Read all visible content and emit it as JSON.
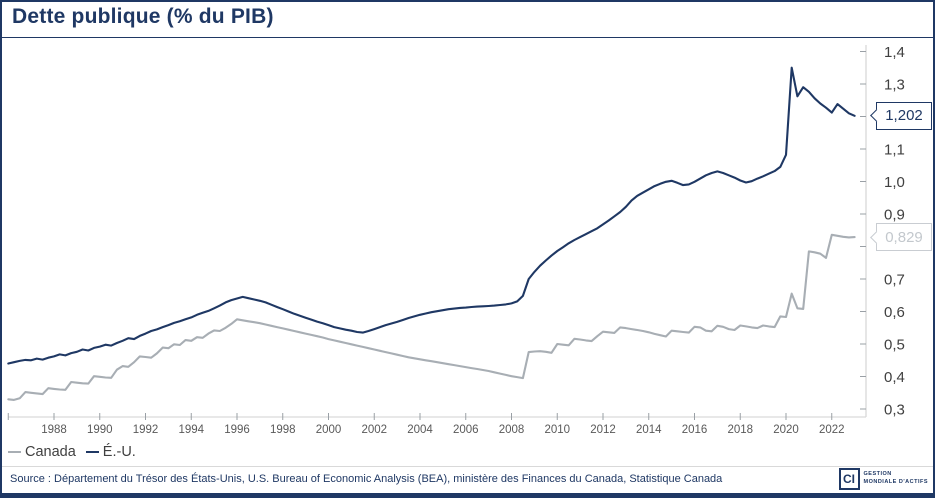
{
  "title": "Dette publique (% du PIB)",
  "source": "Source : Département du Trésor des États-Unis, U.S. Bureau of Economic Analysis (BEA), ministère des Finances du Canada, Statistique Canada",
  "logo": {
    "mark": "CI",
    "line1": "GESTION",
    "line2": "MONDIALE D'ACTIFS"
  },
  "legend": [
    {
      "label": "Canada",
      "color": "#A8AEB4"
    },
    {
      "label": "É.-U.",
      "color": "#1F3864"
    }
  ],
  "colors": {
    "navy": "#1F3864",
    "canada_gray": "#A8AEB4",
    "axis_line": "#D9D9D9",
    "tick": "#9AA0A6",
    "ytick_label": "#404040",
    "xtick_label": "#595959",
    "gray_callout_border": "#C9CDD2",
    "gray_callout_text": "#C3C8CD"
  },
  "chart_data": {
    "type": "line",
    "title": "Dette publique (% du PIB)",
    "xlabel": "",
    "ylabel": "",
    "x_start_year": 1986,
    "x_step_years": 0.25,
    "xlim": [
      1986,
      2023.5
    ],
    "y_axis": {
      "min": 0.3,
      "max": 1.4,
      "side": "right",
      "ticks": [
        {
          "value": 1.4,
          "label": "1,4"
        },
        {
          "value": 1.3,
          "label": "1,3"
        },
        {
          "value": 1.2,
          "label": ""
        },
        {
          "value": 1.1,
          "label": "1,1"
        },
        {
          "value": 1.0,
          "label": "1,0"
        },
        {
          "value": 0.9,
          "label": "0,9"
        },
        {
          "value": 0.8,
          "label": ""
        },
        {
          "value": 0.7,
          "label": "0,7"
        },
        {
          "value": 0.6,
          "label": "0,6"
        },
        {
          "value": 0.5,
          "label": "0,5"
        },
        {
          "value": 0.4,
          "label": "0,4"
        },
        {
          "value": 0.3,
          "label": "0,3"
        }
      ]
    },
    "x_axis": {
      "ticks": [
        {
          "year": 1986,
          "label": ""
        },
        {
          "year": 1988,
          "label": "1988"
        },
        {
          "year": 1990,
          "label": "1990"
        },
        {
          "year": 1992,
          "label": "1992"
        },
        {
          "year": 1994,
          "label": "1994"
        },
        {
          "year": 1996,
          "label": "1996"
        },
        {
          "year": 1998,
          "label": "1998"
        },
        {
          "year": 2000,
          "label": "2000"
        },
        {
          "year": 2002,
          "label": "2002"
        },
        {
          "year": 2004,
          "label": "2004"
        },
        {
          "year": 2006,
          "label": "2006"
        },
        {
          "year": 2008,
          "label": "2008"
        },
        {
          "year": 2010,
          "label": "2010"
        },
        {
          "year": 2012,
          "label": "2012"
        },
        {
          "year": 2014,
          "label": "2014"
        },
        {
          "year": 2016,
          "label": "2016"
        },
        {
          "year": 2018,
          "label": "2018"
        },
        {
          "year": 2020,
          "label": "2020"
        },
        {
          "year": 2022,
          "label": "2022"
        }
      ]
    },
    "legend_position": "bottom-left",
    "grid": false,
    "series": [
      {
        "name": "Canada",
        "color": "#A8AEB4",
        "end_value": 0.829,
        "end_label": "0,829",
        "values": [
          0.33,
          0.328,
          0.333,
          0.352,
          0.35,
          0.348,
          0.346,
          0.364,
          0.362,
          0.36,
          0.359,
          0.383,
          0.381,
          0.379,
          0.378,
          0.401,
          0.399,
          0.397,
          0.396,
          0.421,
          0.432,
          0.43,
          0.444,
          0.462,
          0.46,
          0.458,
          0.471,
          0.489,
          0.487,
          0.499,
          0.497,
          0.512,
          0.51,
          0.521,
          0.519,
          0.532,
          0.542,
          0.54,
          0.55,
          0.562,
          0.576,
          0.573,
          0.57,
          0.567,
          0.564,
          0.56,
          0.556,
          0.552,
          0.548,
          0.544,
          0.54,
          0.536,
          0.532,
          0.528,
          0.524,
          0.52,
          0.515,
          0.511,
          0.507,
          0.503,
          0.499,
          0.495,
          0.491,
          0.487,
          0.483,
          0.479,
          0.475,
          0.471,
          0.467,
          0.463,
          0.459,
          0.456,
          0.453,
          0.45,
          0.447,
          0.444,
          0.441,
          0.438,
          0.435,
          0.432,
          0.429,
          0.426,
          0.423,
          0.42,
          0.417,
          0.413,
          0.409,
          0.405,
          0.401,
          0.398,
          0.395,
          0.475,
          0.477,
          0.478,
          0.476,
          0.473,
          0.5,
          0.498,
          0.496,
          0.516,
          0.514,
          0.511,
          0.509,
          0.524,
          0.538,
          0.536,
          0.534,
          0.551,
          0.549,
          0.546,
          0.543,
          0.54,
          0.536,
          0.531,
          0.527,
          0.523,
          0.541,
          0.539,
          0.537,
          0.535,
          0.553,
          0.551,
          0.541,
          0.539,
          0.556,
          0.553,
          0.546,
          0.543,
          0.557,
          0.554,
          0.551,
          0.549,
          0.557,
          0.554,
          0.552,
          0.585,
          0.583,
          0.655,
          0.61,
          0.608,
          0.785,
          0.782,
          0.778,
          0.765,
          0.836,
          0.833,
          0.83,
          0.828,
          0.829
        ]
      },
      {
        "name": "É.-U.",
        "color": "#1F3864",
        "end_value": 1.202,
        "end_label": "1,202",
        "values": [
          0.44,
          0.444,
          0.448,
          0.451,
          0.45,
          0.455,
          0.452,
          0.458,
          0.462,
          0.468,
          0.465,
          0.472,
          0.476,
          0.483,
          0.48,
          0.488,
          0.492,
          0.498,
          0.495,
          0.503,
          0.51,
          0.518,
          0.515,
          0.525,
          0.532,
          0.54,
          0.545,
          0.552,
          0.558,
          0.565,
          0.57,
          0.576,
          0.582,
          0.59,
          0.596,
          0.602,
          0.61,
          0.618,
          0.628,
          0.635,
          0.64,
          0.645,
          0.641,
          0.637,
          0.633,
          0.628,
          0.621,
          0.614,
          0.607,
          0.6,
          0.593,
          0.587,
          0.581,
          0.575,
          0.569,
          0.564,
          0.558,
          0.552,
          0.548,
          0.544,
          0.541,
          0.537,
          0.535,
          0.54,
          0.546,
          0.552,
          0.558,
          0.563,
          0.568,
          0.574,
          0.58,
          0.585,
          0.59,
          0.594,
          0.598,
          0.601,
          0.604,
          0.607,
          0.609,
          0.611,
          0.612,
          0.614,
          0.615,
          0.616,
          0.617,
          0.618,
          0.62,
          0.622,
          0.625,
          0.631,
          0.648,
          0.7,
          0.722,
          0.741,
          0.757,
          0.772,
          0.786,
          0.798,
          0.81,
          0.82,
          0.829,
          0.838,
          0.847,
          0.856,
          0.868,
          0.88,
          0.893,
          0.906,
          0.922,
          0.942,
          0.956,
          0.966,
          0.976,
          0.986,
          0.993,
          0.999,
          1.002,
          0.996,
          0.989,
          0.991,
          0.999,
          1.009,
          1.019,
          1.026,
          1.031,
          1.026,
          1.019,
          1.012,
          1.003,
          0.997,
          1.001,
          1.009,
          1.016,
          1.024,
          1.032,
          1.045,
          1.082,
          1.35,
          1.262,
          1.29,
          1.276,
          1.256,
          1.24,
          1.227,
          1.212,
          1.238,
          1.224,
          1.21,
          1.202
        ]
      }
    ]
  }
}
